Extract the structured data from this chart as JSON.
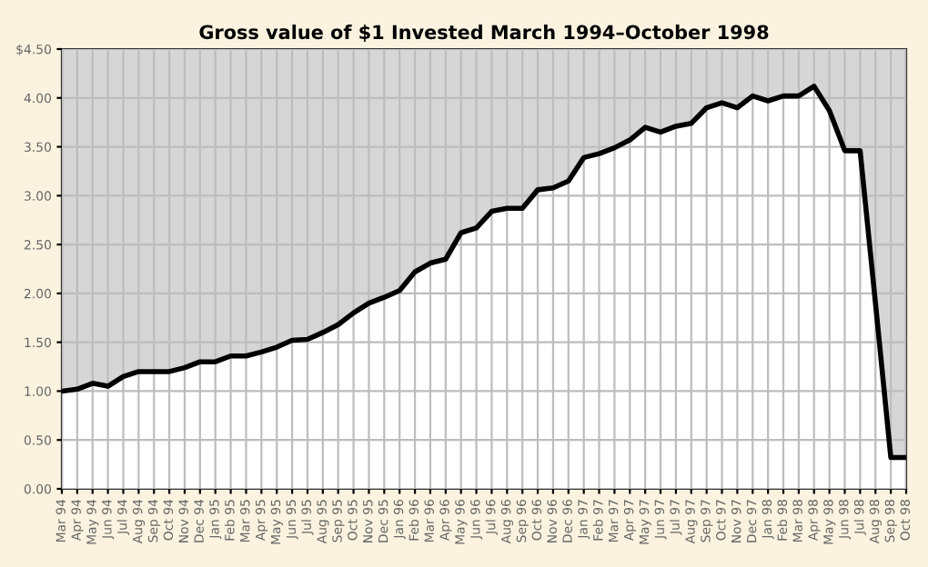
{
  "chart_data": {
    "type": "area",
    "title": "Gross value of $1 Invested March 1994–October 1998",
    "categories": [
      "Mar 94",
      "Apr 94",
      "May 94",
      "Jun 94",
      "Jul 94",
      "Aug 94",
      "Sep 94",
      "Oct 94",
      "Nov 94",
      "Dec 94",
      "Jan 95",
      "Feb 95",
      "Mar 95",
      "Apr 95",
      "May 95",
      "Jun 95",
      "Jul 95",
      "Aug 95",
      "Sep 95",
      "Oct 95",
      "Nov 95",
      "Dec 95",
      "Jan 96",
      "Feb 96",
      "Mar 96",
      "Apr 96",
      "May 96",
      "Jun 96",
      "Jul 96",
      "Aug 96",
      "Sep 96",
      "Oct 96",
      "Nov 96",
      "Dec 96",
      "Jan 97",
      "Feb 97",
      "Mar 97",
      "Apr 97",
      "May 97",
      "Jun 97",
      "Jul 97",
      "Aug 97",
      "Sep 97",
      "Oct 97",
      "Nov 97",
      "Dec 97",
      "Jan 98",
      "Feb 98",
      "Mar 98",
      "Apr 98",
      "May 98",
      "Jun 98",
      "Jul 98",
      "Aug 98",
      "Sep 98",
      "Oct 98"
    ],
    "series": [
      {
        "color": "#000000",
        "values": [
          1.0,
          1.02,
          1.08,
          1.05,
          1.15,
          1.2,
          1.2,
          1.2,
          1.24,
          1.3,
          1.3,
          1.36,
          1.36,
          1.4,
          1.45,
          1.52,
          1.53,
          1.6,
          1.68,
          1.8,
          1.9,
          1.96,
          2.03,
          2.22,
          2.31,
          2.35,
          2.62,
          2.67,
          2.84,
          2.87,
          2.87,
          3.06,
          3.08,
          3.15,
          3.39,
          3.43,
          3.49,
          3.57,
          3.7,
          3.65,
          3.71,
          3.74,
          3.9,
          3.95,
          3.9,
          4.02,
          3.97,
          4.02,
          4.02,
          4.12,
          3.87,
          3.46,
          3.46,
          1.9,
          0.32,
          0.32
        ]
      }
    ],
    "ylim": [
      0,
      4.5
    ],
    "yticks": [
      {
        "value": 0,
        "label": "0.00"
      },
      {
        "value": 0.5,
        "label": "0.50"
      },
      {
        "value": 1,
        "label": "1.00"
      },
      {
        "value": 1.5,
        "label": "1.50"
      },
      {
        "value": 2,
        "label": "2.00"
      },
      {
        "value": 2.5,
        "label": "2.50"
      },
      {
        "value": 3,
        "label": "3.00"
      },
      {
        "value": 3.5,
        "label": "3.50"
      },
      {
        "value": 4,
        "label": "4.00"
      },
      {
        "value": 4.5,
        "label": "$4.50"
      }
    ],
    "grid": true,
    "marker": "none",
    "line_style": "solid"
  }
}
